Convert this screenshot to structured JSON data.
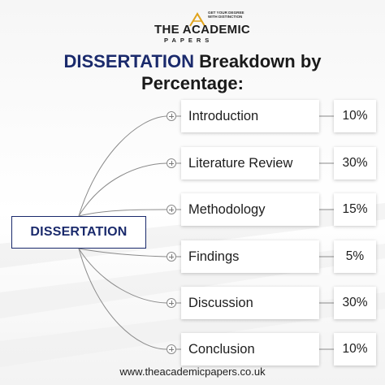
{
  "logo": {
    "name": "THE ACADEMIC",
    "sub": "PAPERS",
    "tagline": "GET YOUR DEGREE WITH DISTINCTION"
  },
  "title": {
    "highlight": "DISSERTATION",
    "line1_rest": " Breakdown by",
    "line2": "Percentage:"
  },
  "center": {
    "label": "DISSERTATION"
  },
  "sections": [
    {
      "label": "Introduction",
      "percent": "10%"
    },
    {
      "label": "Literature Review",
      "percent": "30%"
    },
    {
      "label": "Methodology",
      "percent": "15%"
    },
    {
      "label": "Findings",
      "percent": "5%"
    },
    {
      "label": "Discussion",
      "percent": "30%"
    },
    {
      "label": "Conclusion",
      "percent": "10%"
    }
  ],
  "footer": {
    "url": "www.theacademicpapers.co.uk"
  },
  "colors": {
    "accent": "#1a2a6c",
    "connector": "#8a8a8a"
  }
}
